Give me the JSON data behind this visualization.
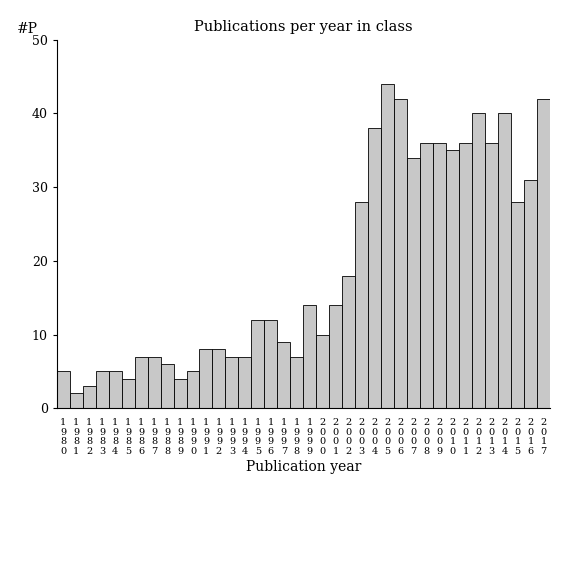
{
  "title": "Publications per year in class",
  "xlabel": "Publication year",
  "ylabel": "#P",
  "bar_color": "#c8c8c8",
  "edge_color": "#000000",
  "ylim": [
    0,
    50
  ],
  "yticks": [
    0,
    10,
    20,
    30,
    40,
    50
  ],
  "years": [
    1980,
    1981,
    1982,
    1983,
    1984,
    1985,
    1986,
    1987,
    1988,
    1989,
    1990,
    1991,
    1992,
    1993,
    1994,
    1995,
    1996,
    1997,
    1998,
    1999,
    2000,
    2001,
    2002,
    2003,
    2004,
    2005,
    2006,
    2007,
    2008,
    2009,
    2010,
    2011,
    2012,
    2013,
    2014,
    2015,
    2016,
    2017
  ],
  "values": [
    5,
    2,
    3,
    5,
    5,
    4,
    7,
    7,
    6,
    4,
    5,
    8,
    8,
    7,
    7,
    12,
    12,
    9,
    7,
    14,
    10,
    14,
    18,
    28,
    38,
    44,
    42,
    34,
    36,
    36,
    35,
    36,
    40,
    36,
    40,
    28,
    31,
    42
  ],
  "background_color": "#ffffff"
}
